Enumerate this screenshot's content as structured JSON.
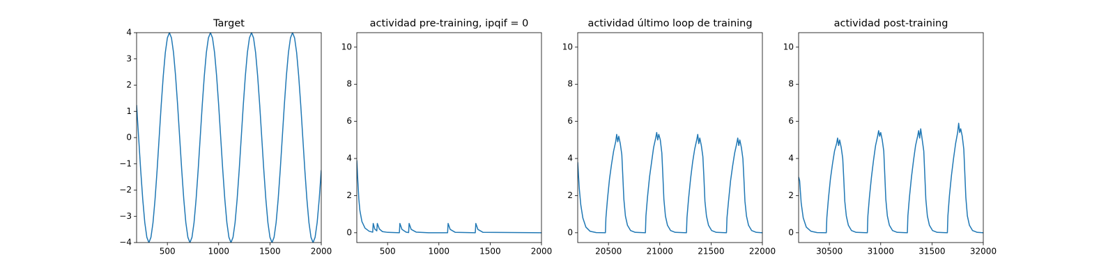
{
  "chart_data": [
    {
      "type": "line",
      "title": "Target",
      "color": "#1f77b4",
      "x": [
        200,
        220,
        240,
        260,
        280,
        300,
        320,
        340,
        360,
        380,
        400,
        420,
        440,
        460,
        480,
        500,
        520,
        540,
        560,
        580,
        600,
        620,
        640,
        660,
        680,
        700,
        720,
        740,
        760,
        780,
        800,
        820,
        840,
        860,
        880,
        900,
        920,
        940,
        960,
        980,
        1000,
        1020,
        1040,
        1060,
        1080,
        1100,
        1120,
        1140,
        1160,
        1180,
        1200,
        1220,
        1240,
        1260,
        1280,
        1300,
        1320,
        1340,
        1360,
        1380,
        1400,
        1420,
        1440,
        1460,
        1480,
        1500,
        1520,
        1540,
        1560,
        1580,
        1600,
        1620,
        1640,
        1660,
        1680,
        1700,
        1720,
        1740,
        1760,
        1780,
        1800,
        1820,
        1840,
        1860,
        1880,
        1900,
        1920,
        1940,
        1960,
        1980,
        2000
      ],
      "values": [
        1.24,
        0,
        -1.24,
        -2.35,
        -3.24,
        -3.8,
        -4,
        -3.8,
        -3.24,
        -2.35,
        -1.24,
        0,
        1.24,
        2.35,
        3.24,
        3.8,
        4,
        3.8,
        3.24,
        2.35,
        1.24,
        0,
        -1.24,
        -2.35,
        -3.24,
        -3.8,
        -4,
        -3.8,
        -3.24,
        -2.35,
        -1.24,
        0,
        1.24,
        2.35,
        3.24,
        3.8,
        4,
        3.8,
        3.24,
        2.35,
        1.24,
        0,
        -1.24,
        -2.35,
        -3.24,
        -3.8,
        -4,
        -3.8,
        -3.24,
        -2.35,
        -1.24,
        0,
        1.24,
        2.35,
        3.24,
        3.8,
        4,
        3.8,
        3.24,
        2.35,
        1.24,
        0,
        -1.24,
        -2.35,
        -3.24,
        -3.8,
        -4,
        -3.8,
        -3.24,
        -2.35,
        -1.24,
        0,
        1.24,
        2.35,
        3.24,
        3.8,
        4,
        3.8,
        3.24,
        2.35,
        1.24,
        0,
        -1.24,
        -2.35,
        -3.24,
        -3.8,
        -4,
        -3.8,
        -3.24,
        -2.35,
        -1.24
      ],
      "xlim": [
        200,
        2000
      ],
      "xticks": [
        500,
        1000,
        1500,
        2000
      ],
      "ylim": [
        -4,
        4
      ],
      "yticks": [
        {
          "value": -4,
          "label": "−4"
        },
        {
          "value": -3,
          "label": "−3"
        },
        {
          "value": -2,
          "label": "−2"
        },
        {
          "value": -1,
          "label": "−1"
        },
        0,
        1,
        2,
        3,
        4
      ]
    },
    {
      "type": "line",
      "title": "actividad pre-training, ipqif = 0",
      "color": "#1f77b4",
      "x": [
        200,
        210,
        220,
        230,
        250,
        280,
        320,
        355,
        360,
        375,
        395,
        400,
        420,
        450,
        500,
        615,
        620,
        640,
        680,
        705,
        710,
        730,
        780,
        900,
        1085,
        1090,
        1110,
        1160,
        1355,
        1360,
        1380,
        1430,
        2000
      ],
      "values": [
        3.9,
        2.8,
        1.8,
        1.2,
        0.6,
        0.25,
        0.08,
        0.03,
        0.5,
        0.2,
        0.1,
        0.5,
        0.2,
        0.06,
        0.02,
        0,
        0.5,
        0.18,
        0.03,
        0.01,
        0.5,
        0.18,
        0.03,
        0,
        0,
        0.5,
        0.18,
        0.02,
        0,
        0.5,
        0.18,
        0.02,
        0
      ],
      "xlim": [
        200,
        2000
      ],
      "xticks": [
        500,
        1000,
        1500,
        2000
      ],
      "ylim": [
        -0.53,
        10.78
      ],
      "yticks": [
        0,
        2,
        4,
        6,
        8,
        10
      ]
    },
    {
      "type": "line",
      "title": "actividad último loop de training",
      "color": "#1f77b4",
      "x": [
        20200,
        20215,
        20230,
        20250,
        20280,
        20320,
        20380,
        20470,
        20475,
        20490,
        20510,
        20530,
        20550,
        20570,
        20580,
        20590,
        20600,
        20615,
        20630,
        20640,
        20650,
        20665,
        20685,
        20715,
        20760,
        20860,
        20865,
        20880,
        20900,
        20920,
        20940,
        20960,
        20970,
        20980,
        20990,
        21005,
        21020,
        21030,
        21040,
        21055,
        21075,
        21105,
        21150,
        21260,
        21265,
        21280,
        21300,
        21320,
        21340,
        21360,
        21370,
        21380,
        21390,
        21405,
        21420,
        21430,
        21440,
        21455,
        21475,
        21505,
        21550,
        21650,
        21655,
        21670,
        21690,
        21710,
        21730,
        21750,
        21760,
        21770,
        21780,
        21795,
        21810,
        21820,
        21830,
        21845,
        21865,
        21895,
        21940,
        22000
      ],
      "values": [
        3.8,
        2.4,
        1.5,
        0.8,
        0.3,
        0.08,
        0.01,
        0,
        0.8,
        1.8,
        2.9,
        3.7,
        4.4,
        4.9,
        5.3,
        4.9,
        5.2,
        4.8,
        4.2,
        3.0,
        1.8,
        0.9,
        0.4,
        0.12,
        0.02,
        0,
        0.9,
        1.9,
        3.0,
        3.8,
        4.6,
        5.1,
        5.4,
        5.0,
        5.3,
        5.0,
        4.3,
        3.1,
        1.8,
        0.9,
        0.4,
        0.12,
        0.02,
        0,
        0.8,
        1.8,
        2.9,
        3.8,
        4.5,
        5.0,
        5.3,
        4.8,
        5.1,
        4.7,
        4.1,
        3.0,
        1.7,
        0.9,
        0.4,
        0.12,
        0.02,
        0,
        0.8,
        1.7,
        2.8,
        3.6,
        4.3,
        4.8,
        5.1,
        4.7,
        5.0,
        4.6,
        4.0,
        2.9,
        1.7,
        0.9,
        0.4,
        0.12,
        0.02,
        0
      ],
      "xlim": [
        20200,
        22000
      ],
      "xticks": [
        20500,
        21000,
        21500,
        22000
      ],
      "ylim": [
        -0.53,
        10.78
      ],
      "yticks": [
        0,
        2,
        4,
        6,
        8,
        10
      ]
    },
    {
      "type": "line",
      "title": "actividad post-training",
      "color": "#1f77b4",
      "x": [
        30200,
        30210,
        30225,
        30245,
        30275,
        30320,
        30380,
        30470,
        30475,
        30490,
        30510,
        30530,
        30550,
        30570,
        30580,
        30590,
        30600,
        30615,
        30630,
        30640,
        30650,
        30665,
        30685,
        30715,
        30760,
        30870,
        30875,
        30890,
        30910,
        30930,
        30950,
        30970,
        30980,
        30990,
        31000,
        31015,
        31030,
        31040,
        31050,
        31065,
        31085,
        31115,
        31160,
        31260,
        31265,
        31280,
        31300,
        31320,
        31340,
        31360,
        31370,
        31380,
        31390,
        31405,
        31420,
        31430,
        31440,
        31455,
        31475,
        31505,
        31550,
        31650,
        31655,
        31670,
        31690,
        31710,
        31730,
        31750,
        31760,
        31770,
        31780,
        31795,
        31810,
        31820,
        31830,
        31845,
        31865,
        31895,
        31940,
        32000
      ],
      "values": [
        3.0,
        2.8,
        1.6,
        0.8,
        0.3,
        0.08,
        0.01,
        0,
        0.8,
        1.8,
        2.9,
        3.7,
        4.4,
        4.8,
        5.1,
        4.7,
        5.0,
        4.6,
        4.0,
        2.9,
        1.7,
        0.9,
        0.4,
        0.12,
        0.02,
        0,
        0.9,
        1.9,
        3.0,
        3.9,
        4.7,
        5.2,
        5.5,
        5.2,
        5.4,
        5.0,
        4.4,
        3.1,
        1.8,
        0.9,
        0.4,
        0.12,
        0.02,
        0,
        0.9,
        1.9,
        3.0,
        3.9,
        4.7,
        5.2,
        5.5,
        5.1,
        5.6,
        5.0,
        4.4,
        3.1,
        1.8,
        0.9,
        0.4,
        0.12,
        0.02,
        0,
        0.9,
        2.0,
        3.1,
        4.0,
        4.8,
        5.4,
        5.9,
        5.4,
        5.6,
        5.2,
        4.5,
        3.2,
        1.9,
        0.9,
        0.4,
        0.12,
        0.02,
        0
      ],
      "xlim": [
        30200,
        32000
      ],
      "xticks": [
        30500,
        31000,
        31500,
        32000
      ],
      "ylim": [
        -0.53,
        10.78
      ],
      "yticks": [
        0,
        2,
        4,
        6,
        8,
        10
      ]
    }
  ]
}
